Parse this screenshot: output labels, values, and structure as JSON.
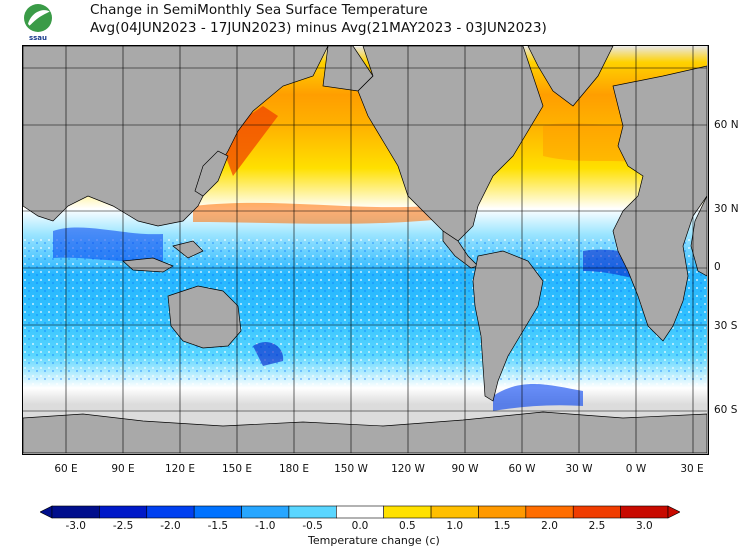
{
  "title": {
    "line1": "Change in SemiMonthly Sea Surface Temperature",
    "line2": "Avg(04JUN2023 - 17JUN2023) minus Avg(21MAY2023 - 03JUN2023)"
  },
  "logo": {
    "text": "ssau",
    "icon": "leaf-logo"
  },
  "longitude_labels": [
    "60 E",
    "90 E",
    "120 E",
    "150 E",
    "180 E",
    "150 W",
    "120 W",
    "90 W",
    "60 W",
    "30 W",
    "0 W",
    "30 E"
  ],
  "latitude_labels": [
    "60 N",
    "30 N",
    "0",
    "30 S",
    "60 S"
  ],
  "colorbar": {
    "title": "Temperature change  (c)",
    "tick_labels": [
      "-3.0",
      "-2.5",
      "-2.0",
      "-1.5",
      "-1.0",
      "-0.5",
      "0.0",
      "0.5",
      "1.0",
      "1.5",
      "2.0",
      "2.5",
      "3.0"
    ],
    "colors": [
      "#000e8c",
      "#0019c8",
      "#0040f0",
      "#0072ff",
      "#27a6ff",
      "#5ad6ff",
      "#ffffff",
      "#ffe100",
      "#ffbf00",
      "#ff9900",
      "#ff6d00",
      "#f03c00",
      "#c80a00"
    ]
  },
  "map_colors": {
    "land": "#a9a9a9",
    "ice_missing": "#dcdcdc",
    "coast": "#000000"
  }
}
